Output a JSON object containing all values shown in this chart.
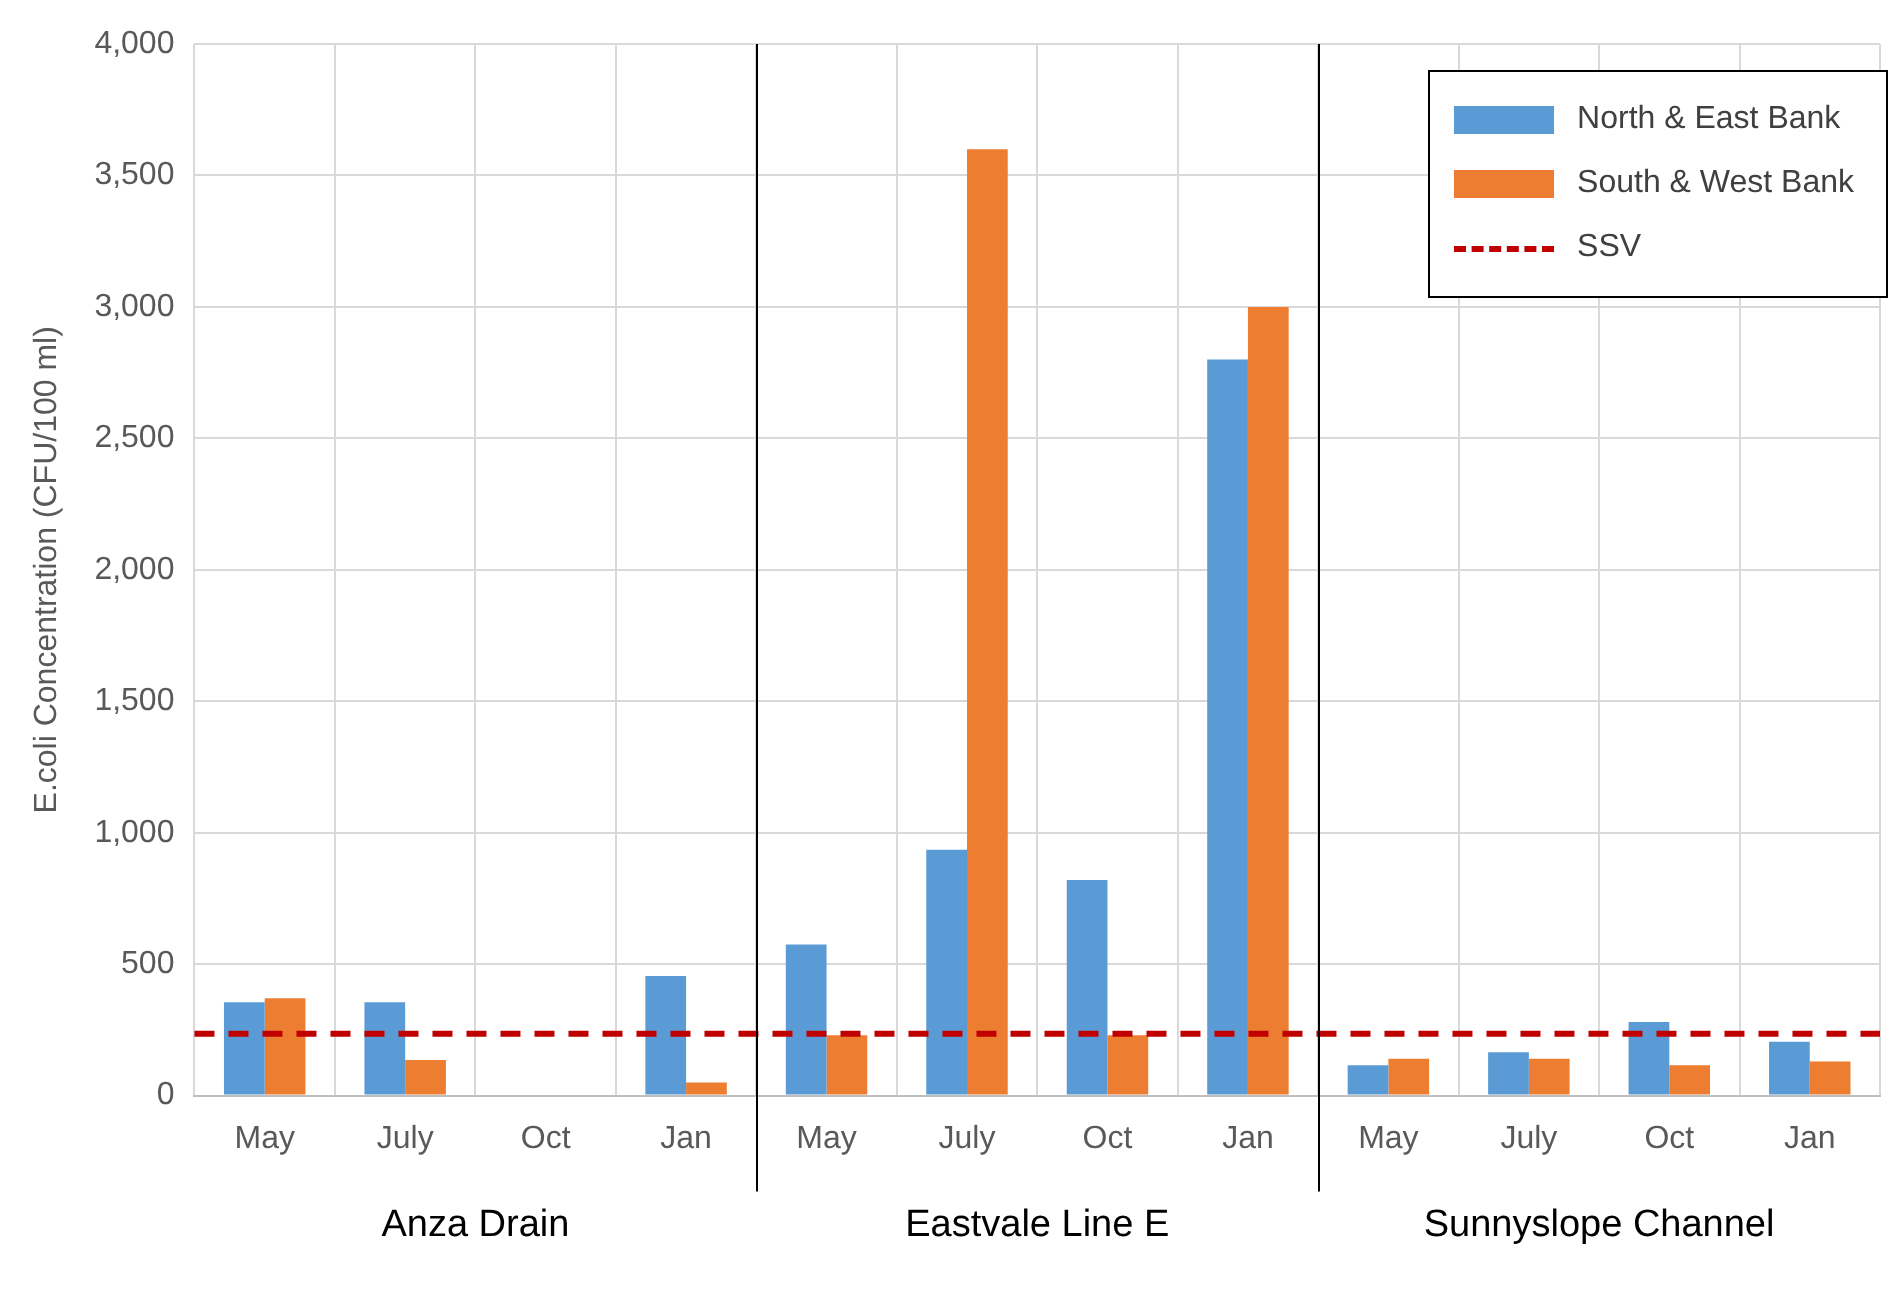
{
  "chart_data": {
    "type": "bar",
    "ylabel": "E.coli Concentration (CFU/100 ml)",
    "categories": [
      "May",
      "July",
      "Oct",
      "Jan",
      "May",
      "July",
      "Oct",
      "Jan",
      "May",
      "July",
      "Oct",
      "Jan"
    ],
    "series": [
      {
        "name": "North & East Bank",
        "color": "#5b9bd5",
        "values": [
          355,
          355,
          null,
          455,
          575,
          935,
          820,
          2800,
          115,
          165,
          280,
          205
        ]
      },
      {
        "name": "South & West Bank",
        "color": "#ed7d31",
        "values": [
          370,
          135,
          null,
          50,
          230,
          3600,
          230,
          3000,
          140,
          140,
          115,
          130
        ]
      }
    ],
    "ylim": [
      0,
      4000
    ],
    "yticks": [
      {
        "value": 0,
        "label": "0"
      },
      {
        "value": 500,
        "label": "500"
      },
      {
        "value": 1000,
        "label": "1,000"
      },
      {
        "value": 1500,
        "label": "1,500"
      },
      {
        "value": 2000,
        "label": "2,000"
      },
      {
        "value": 2500,
        "label": "2,500"
      },
      {
        "value": 3000,
        "label": "3,000"
      },
      {
        "value": 3500,
        "label": "3,500"
      },
      {
        "value": 4000,
        "label": "4,000"
      }
    ],
    "ref_lines": [
      {
        "axis": "y",
        "value": 235,
        "label": "SSV",
        "color": "#c00000",
        "line_style": "dashed"
      }
    ],
    "annotations": [
      "Anza Drain",
      "Eastvale Line E",
      "Sunnyslope Channel"
    ],
    "grid": true,
    "legend": "top right"
  }
}
